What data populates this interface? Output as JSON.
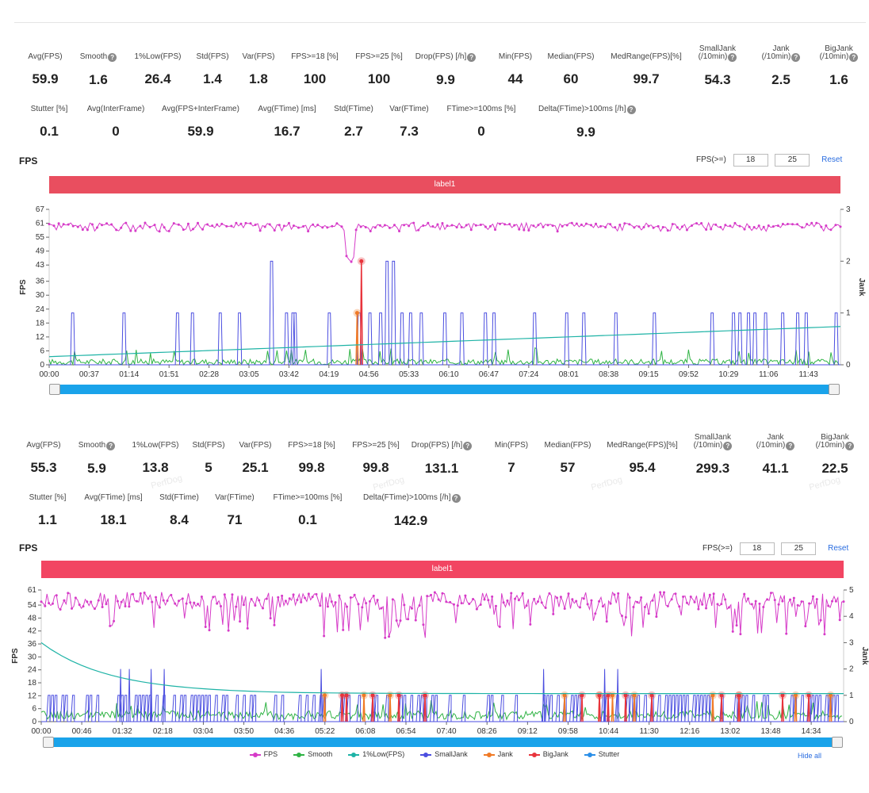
{
  "panel1": {
    "stats_row1": [
      {
        "label": "Avg(FPS)",
        "value": "59.9",
        "help": false
      },
      {
        "label": "Smooth",
        "value": "1.6",
        "help": true
      },
      {
        "label": "1%Low(FPS)",
        "value": "26.4",
        "help": false
      },
      {
        "label": "Std(FPS)",
        "value": "1.4",
        "help": false
      },
      {
        "label": "Var(FPS)",
        "value": "1.8",
        "help": false
      },
      {
        "label": "FPS>=18 [%]",
        "value": "100",
        "help": false
      },
      {
        "label": "FPS>=25 [%]",
        "value": "100",
        "help": false
      },
      {
        "label": "Drop(FPS) [/h]",
        "value": "9.9",
        "help": true
      },
      {
        "label": "Min(FPS)",
        "value": "44",
        "help": false
      },
      {
        "label": "Median(FPS)",
        "value": "60",
        "help": false
      },
      {
        "label": "MedRange(FPS)[%]",
        "value": "99.7",
        "help": false
      },
      {
        "label": "SmallJank",
        "label2": "(/10min)",
        "value": "54.3",
        "help": true
      },
      {
        "label": "Jank",
        "label2": "(/10min)",
        "value": "2.5",
        "help": true
      },
      {
        "label": "BigJank",
        "label2": "(/10min)",
        "value": "1.6",
        "help": true
      }
    ],
    "stats_row2": [
      {
        "label": "Stutter [%]",
        "value": "0.1",
        "help": false
      },
      {
        "label": "Avg(InterFrame)",
        "value": "0",
        "help": false
      },
      {
        "label": "Avg(FPS+InterFrame)",
        "value": "59.9",
        "help": false
      },
      {
        "label": "Avg(FTime) [ms]",
        "value": "16.7",
        "help": false
      },
      {
        "label": "Std(FTime)",
        "value": "2.7",
        "help": false
      },
      {
        "label": "Var(FTime)",
        "value": "7.3",
        "help": false
      },
      {
        "label": "FTime>=100ms [%]",
        "value": "0",
        "help": false
      },
      {
        "label": "Delta(FTime)>100ms [/h]",
        "value": "9.9",
        "help": true
      }
    ],
    "title": "FPS",
    "fps_label": "FPS(>=)",
    "fps_threshold_1": "18",
    "fps_threshold_2": "25",
    "reset": "Reset",
    "label_bar": "label1"
  },
  "panel2": {
    "stats_row1": [
      {
        "label": "Avg(FPS)",
        "value": "55.3",
        "help": false
      },
      {
        "label": "Smooth",
        "value": "5.9",
        "help": true
      },
      {
        "label": "1%Low(FPS)",
        "value": "13.8",
        "help": false
      },
      {
        "label": "Std(FPS)",
        "value": "5",
        "help": false
      },
      {
        "label": "Var(FPS)",
        "value": "25.1",
        "help": false
      },
      {
        "label": "FPS>=18 [%]",
        "value": "99.8",
        "help": false
      },
      {
        "label": "FPS>=25 [%]",
        "value": "99.8",
        "help": false
      },
      {
        "label": "Drop(FPS) [/h]",
        "value": "131.1",
        "help": true
      },
      {
        "label": "Min(FPS)",
        "value": "7",
        "help": false
      },
      {
        "label": "Median(FPS)",
        "value": "57",
        "help": false
      },
      {
        "label": "MedRange(FPS)[%]",
        "value": "95.4",
        "help": false
      },
      {
        "label": "SmallJank",
        "label2": "(/10min)",
        "value": "299.3",
        "help": true
      },
      {
        "label": "Jank",
        "label2": "(/10min)",
        "value": "41.1",
        "help": true
      },
      {
        "label": "BigJank",
        "label2": "(/10min)",
        "value": "22.5",
        "help": true
      }
    ],
    "stats_row2": [
      {
        "label": "Stutter [%]",
        "value": "1.1",
        "help": false
      },
      {
        "label": "Avg(FTime) [ms]",
        "value": "18.1",
        "help": false
      },
      {
        "label": "Std(FTime)",
        "value": "8.4",
        "help": false
      },
      {
        "label": "Var(FTime)",
        "value": "71",
        "help": false
      },
      {
        "label": "FTime>=100ms [%]",
        "value": "0.1",
        "help": false
      },
      {
        "label": "Delta(FTime)>100ms [/h]",
        "value": "142.9",
        "help": true
      }
    ],
    "title": "FPS",
    "fps_label": "FPS(>=)",
    "fps_threshold_1": "18",
    "fps_threshold_2": "25",
    "reset": "Reset",
    "label_bar": "label1"
  },
  "legend": [
    {
      "name": "FPS",
      "color": "#d63bc8"
    },
    {
      "name": "Smooth",
      "color": "#2fb344"
    },
    {
      "name": "1%Low(FPS)",
      "color": "#1eb3a6"
    },
    {
      "name": "SmallJank",
      "color": "#4b4ee0"
    },
    {
      "name": "Jank",
      "color": "#f07a26"
    },
    {
      "name": "BigJank",
      "color": "#e8343c"
    },
    {
      "name": "Stutter",
      "color": "#2a8ee8"
    }
  ],
  "hide_all": "Hide all",
  "watermark": "PerfDog",
  "chart_data": [
    {
      "type": "line",
      "title": "",
      "ylabel": "FPS",
      "y2label": "Jank",
      "ylim": [
        0,
        67
      ],
      "y2lim": [
        0,
        3
      ],
      "yticks": [
        0,
        6,
        12,
        18,
        24,
        30,
        36,
        43,
        49,
        55,
        61,
        67
      ],
      "y2ticks": [
        0,
        1,
        2,
        3
      ],
      "xticks": [
        "00:00",
        "00:37",
        "01:14",
        "01:51",
        "02:28",
        "03:05",
        "03:42",
        "04:19",
        "04:56",
        "05:33",
        "06:10",
        "06:47",
        "07:24",
        "08:01",
        "08:38",
        "09:15",
        "09:52",
        "10:29",
        "11:06",
        "11:43"
      ],
      "duration_s": 740,
      "series": [
        {
          "name": "FPS",
          "approx_values": "mostly 59-61",
          "dip_at_s": 282,
          "dip_min": 44
        },
        {
          "name": "1%Low(FPS)",
          "start": 3.5,
          "end": 16.5
        },
        {
          "name": "SmallJank",
          "spike_times_s": [
            22,
            70,
            120,
            134,
            160,
            178,
            208,
            222,
            228,
            230,
            262,
            290,
            300,
            310,
            316,
            322,
            330,
            338,
            348,
            370,
            386,
            408,
            416,
            454,
            484,
            500,
            530,
            566,
            620,
            640,
            646,
            654,
            660,
            670,
            686,
            700,
            708,
            736
          ],
          "tall_spikes_s": [
            208,
            318,
            536
          ]
        },
        {
          "name": "Jank",
          "spike_times_s": [
            288
          ],
          "values": [
            1.0
          ]
        },
        {
          "name": "BigJank",
          "spike_times_s": [
            292
          ],
          "values": [
            2.0
          ]
        }
      ]
    },
    {
      "type": "line",
      "title": "",
      "ylabel": "FPS",
      "y2label": "Jank",
      "ylim": [
        0,
        61
      ],
      "y2lim": [
        0,
        5
      ],
      "yticks": [
        0,
        6,
        12,
        18,
        24,
        30,
        36,
        42,
        48,
        54,
        61
      ],
      "y2ticks": [
        0,
        1,
        2,
        3,
        4,
        5
      ],
      "xticks": [
        "00:00",
        "00:46",
        "01:32",
        "02:18",
        "03:04",
        "03:50",
        "04:36",
        "05:22",
        "06:08",
        "06:54",
        "07:40",
        "08:26",
        "09:12",
        "09:58",
        "10:44",
        "11:30",
        "12:16",
        "13:02",
        "13:48",
        "14:34"
      ],
      "duration_s": 920,
      "series": [
        {
          "name": "FPS",
          "approx_values": "mostly 52-60 with frequent dips to 40-45"
        },
        {
          "name": "1%Low(FPS)",
          "start": 36,
          "end": 13
        },
        {
          "name": "SmallJank",
          "baseline": 1,
          "tall_spikes_s": [
            90,
            100,
            125,
            140,
            320,
            575,
            645,
            660
          ]
        },
        {
          "name": "Jank",
          "spike_times_s": [
            325,
            370,
            400,
            600,
            640,
            655,
            680,
            770,
            800,
            865,
            905
          ]
        },
        {
          "name": "BigJank",
          "spike_times_s": [
            345,
            350,
            380,
            410,
            440,
            620,
            640,
            650,
            670,
            700,
            780,
            800,
            850,
            880
          ]
        }
      ]
    }
  ]
}
